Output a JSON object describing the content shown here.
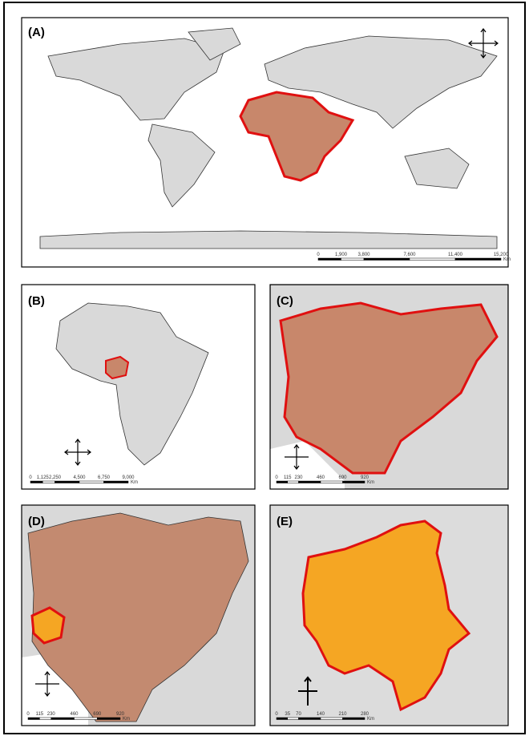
{
  "panels": [
    {
      "label": "(A)",
      "scale_labels": [
        "0",
        "1,900",
        "3,800",
        "7,600",
        "11,400",
        "15,200"
      ],
      "unit": "Km"
    },
    {
      "label": "(B)",
      "scale_labels": [
        "0",
        "1,125",
        "2,250",
        "4,500",
        "6,750",
        "9,000"
      ],
      "unit": "Km"
    },
    {
      "label": "(C)",
      "scale_labels": [
        "0",
        "115",
        "230",
        "460",
        "690",
        "920"
      ],
      "unit": "Km"
    },
    {
      "label": "(D)",
      "scale_labels": [
        "0",
        "115",
        "230",
        "460",
        "690",
        "920"
      ],
      "unit": "Km"
    },
    {
      "label": "(E)",
      "scale_labels": [
        "0",
        "35",
        "70",
        "140",
        "210",
        "280"
      ],
      "unit": "Km"
    }
  ]
}
